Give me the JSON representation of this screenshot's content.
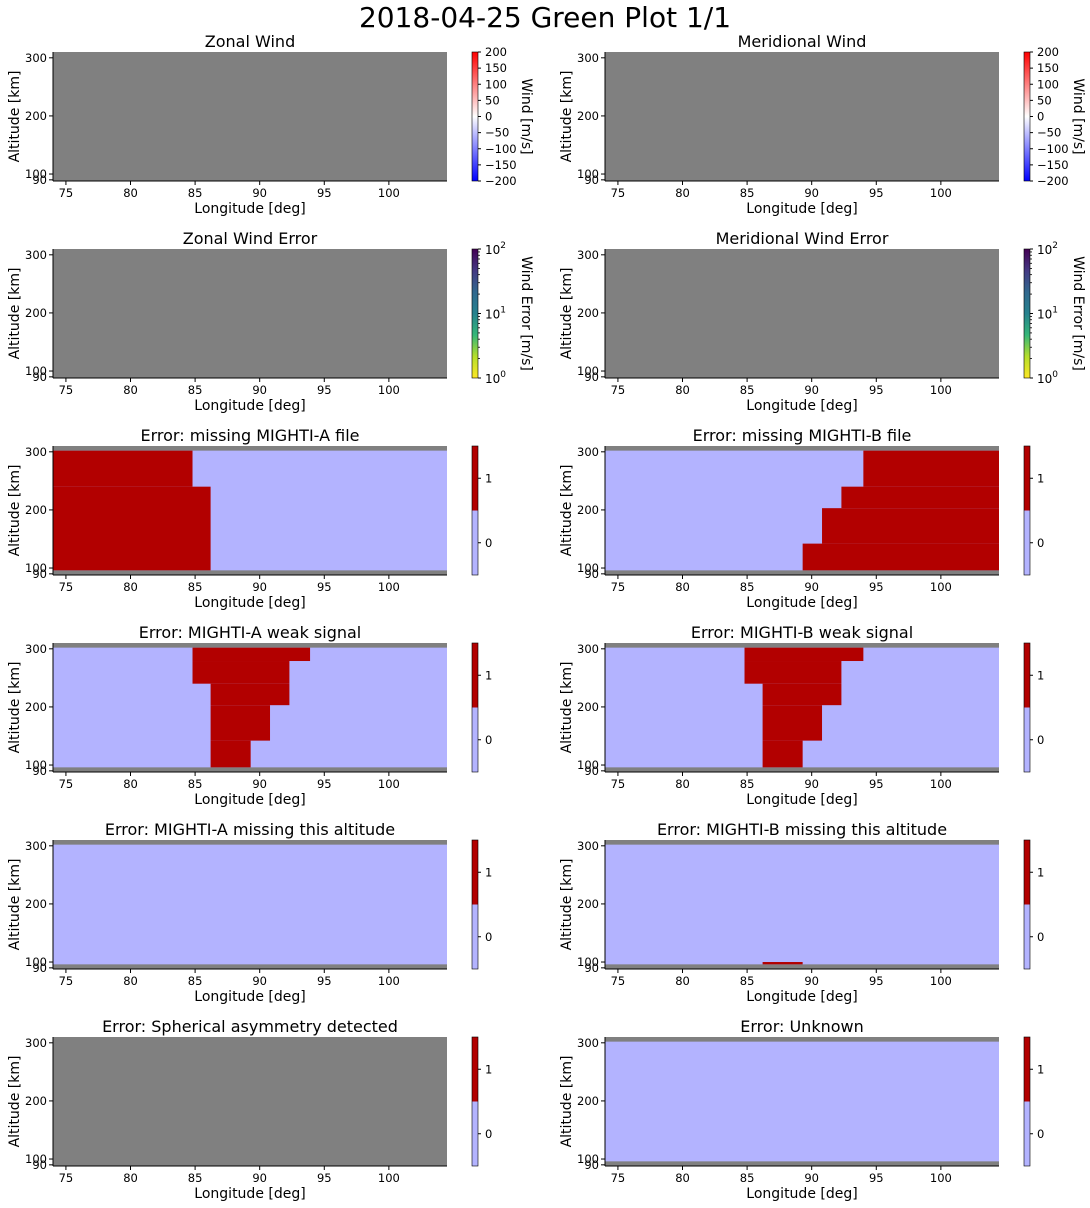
{
  "figure": {
    "title": "2018-04-25 Green Plot 1/1",
    "colors": {
      "missing": "#808080",
      "flag_off": "#b3b3ff",
      "flag_on": "#b20000",
      "wind_cmap": [
        "#0000ff",
        "#8080ff",
        "#ffffff",
        "#ff8080",
        "#ff0000"
      ],
      "error_cmap": [
        "#fde725",
        "#b5de2b",
        "#35b779",
        "#26828e",
        "#31688e",
        "#443983",
        "#440154"
      ]
    }
  },
  "chart_data": [
    {
      "type": "heatmap",
      "title": "Zonal Wind",
      "xlabel": "Longitude [deg]",
      "ylabel": "Altitude [km]",
      "xlim": [
        74,
        104.5
      ],
      "ylim": [
        88,
        310
      ],
      "x_ticks": [
        "75",
        "80",
        "85",
        "90",
        "95",
        "100"
      ],
      "y_ticks": [
        "90",
        "100",
        "200",
        "300"
      ],
      "fill": "missing",
      "cells": [],
      "colorbar": {
        "kind": "linear",
        "label": "Wind [m/s]",
        "range": [
          -200,
          200
        ],
        "ticks": [
          "200",
          "150",
          "100",
          "50",
          "0",
          "−50",
          "−100",
          "−150",
          "−200"
        ]
      }
    },
    {
      "type": "heatmap",
      "title": "Meridional Wind",
      "xlabel": "Longitude [deg]",
      "ylabel": "Altitude [km]",
      "xlim": [
        74,
        104.5
      ],
      "ylim": [
        88,
        310
      ],
      "x_ticks": [
        "75",
        "80",
        "85",
        "90",
        "95",
        "100"
      ],
      "y_ticks": [
        "90",
        "100",
        "200",
        "300"
      ],
      "fill": "missing",
      "cells": [],
      "colorbar": {
        "kind": "linear",
        "label": "Wind [m/s]",
        "range": [
          -200,
          200
        ],
        "ticks": [
          "200",
          "150",
          "100",
          "50",
          "0",
          "−50",
          "−100",
          "−150",
          "−200"
        ]
      }
    },
    {
      "type": "heatmap",
      "title": "Zonal Wind Error",
      "xlabel": "Longitude [deg]",
      "ylabel": "Altitude [km]",
      "xlim": [
        74,
        104.5
      ],
      "ylim": [
        88,
        310
      ],
      "x_ticks": [
        "75",
        "80",
        "85",
        "90",
        "95",
        "100"
      ],
      "y_ticks": [
        "90",
        "100",
        "200",
        "300"
      ],
      "fill": "missing",
      "cells": [],
      "colorbar": {
        "kind": "log",
        "label": "Wind Error [m/s]",
        "range": [
          1,
          100
        ],
        "ticks": [
          {
            "base": "10",
            "exp": "2"
          },
          {
            "base": "10",
            "exp": "1"
          },
          {
            "base": "10",
            "exp": "0"
          }
        ]
      }
    },
    {
      "type": "heatmap",
      "title": "Meridional Wind Error",
      "xlabel": "Longitude [deg]",
      "ylabel": "Altitude [km]",
      "xlim": [
        74,
        104.5
      ],
      "ylim": [
        88,
        310
      ],
      "x_ticks": [
        "75",
        "80",
        "85",
        "90",
        "95",
        "100"
      ],
      "y_ticks": [
        "90",
        "100",
        "200",
        "300"
      ],
      "fill": "missing",
      "cells": [],
      "colorbar": {
        "kind": "log",
        "label": "Wind Error [m/s]",
        "range": [
          1,
          100
        ],
        "ticks": [
          {
            "base": "10",
            "exp": "2"
          },
          {
            "base": "10",
            "exp": "1"
          },
          {
            "base": "10",
            "exp": "0"
          }
        ]
      }
    },
    {
      "type": "heatmap",
      "title": "Error: missing MIGHTI-A file",
      "xlabel": "Longitude [deg]",
      "ylabel": "Altitude [km]",
      "xlim": [
        74,
        104.5
      ],
      "ylim": [
        88,
        310
      ],
      "x_ticks": [
        "75",
        "80",
        "85",
        "90",
        "95",
        "100"
      ],
      "y_ticks": [
        "90",
        "100",
        "200",
        "300"
      ],
      "fill": "flag",
      "valid_alt": [
        96,
        302
      ],
      "cells": [
        [
          74,
          84.8,
          240,
          302
        ],
        [
          74,
          86.2,
          96,
          240
        ]
      ],
      "colorbar": {
        "kind": "binary",
        "label": "",
        "ticks": [
          "1",
          "0"
        ]
      }
    },
    {
      "type": "heatmap",
      "title": "Error: missing MIGHTI-B file",
      "xlabel": "Longitude [deg]",
      "ylabel": "Altitude [km]",
      "xlim": [
        74,
        104.5
      ],
      "ylim": [
        88,
        310
      ],
      "x_ticks": [
        "75",
        "80",
        "85",
        "90",
        "95",
        "100"
      ],
      "y_ticks": [
        "90",
        "100",
        "200",
        "300"
      ],
      "fill": "flag",
      "valid_alt": [
        96,
        302
      ],
      "cells": [
        [
          94,
          104.5,
          240,
          302
        ],
        [
          92.3,
          104.5,
          203,
          240
        ],
        [
          90.8,
          104.5,
          142,
          203
        ],
        [
          89.3,
          104.5,
          96,
          142
        ]
      ],
      "colorbar": {
        "kind": "binary",
        "label": "",
        "ticks": [
          "1",
          "0"
        ]
      }
    },
    {
      "type": "heatmap",
      "title": "Error: MIGHTI-A weak signal",
      "xlabel": "Longitude [deg]",
      "ylabel": "Altitude [km]",
      "xlim": [
        74,
        104.5
      ],
      "ylim": [
        88,
        310
      ],
      "x_ticks": [
        "75",
        "80",
        "85",
        "90",
        "95",
        "100"
      ],
      "y_ticks": [
        "90",
        "100",
        "200",
        "300"
      ],
      "fill": "flag",
      "valid_alt": [
        96,
        302
      ],
      "cells": [
        [
          84.8,
          93.9,
          279,
          302
        ],
        [
          84.8,
          92.3,
          240,
          279
        ],
        [
          86.2,
          92.3,
          203,
          240
        ],
        [
          86.2,
          90.8,
          142,
          203
        ],
        [
          86.2,
          89.3,
          96,
          142
        ]
      ],
      "colorbar": {
        "kind": "binary",
        "label": "",
        "ticks": [
          "1",
          "0"
        ]
      }
    },
    {
      "type": "heatmap",
      "title": "Error: MIGHTI-B weak signal",
      "xlabel": "Longitude [deg]",
      "ylabel": "Altitude [km]",
      "xlim": [
        74,
        104.5
      ],
      "ylim": [
        88,
        310
      ],
      "x_ticks": [
        "75",
        "80",
        "85",
        "90",
        "95",
        "100"
      ],
      "y_ticks": [
        "90",
        "100",
        "200",
        "300"
      ],
      "fill": "flag",
      "valid_alt": [
        96,
        302
      ],
      "cells": [
        [
          84.8,
          94,
          279,
          302
        ],
        [
          84.8,
          92.3,
          240,
          279
        ],
        [
          86.2,
          92.3,
          203,
          240
        ],
        [
          86.2,
          90.8,
          142,
          203
        ],
        [
          86.2,
          89.3,
          96,
          142
        ]
      ],
      "colorbar": {
        "kind": "binary",
        "label": "",
        "ticks": [
          "1",
          "0"
        ]
      }
    },
    {
      "type": "heatmap",
      "title": "Error: MIGHTI-A missing this altitude",
      "xlabel": "Longitude [deg]",
      "ylabel": "Altitude [km]",
      "xlim": [
        74,
        104.5
      ],
      "ylim": [
        88,
        310
      ],
      "x_ticks": [
        "75",
        "80",
        "85",
        "90",
        "95",
        "100"
      ],
      "y_ticks": [
        "90",
        "100",
        "200",
        "300"
      ],
      "fill": "flag",
      "valid_alt": [
        96,
        302
      ],
      "cells": [],
      "colorbar": {
        "kind": "binary",
        "label": "",
        "ticks": [
          "1",
          "0"
        ]
      }
    },
    {
      "type": "heatmap",
      "title": "Error: MIGHTI-B missing this altitude",
      "xlabel": "Longitude [deg]",
      "ylabel": "Altitude [km]",
      "xlim": [
        74,
        104.5
      ],
      "ylim": [
        88,
        310
      ],
      "x_ticks": [
        "75",
        "80",
        "85",
        "90",
        "95",
        "100"
      ],
      "y_ticks": [
        "90",
        "100",
        "200",
        "300"
      ],
      "fill": "flag",
      "valid_alt": [
        96,
        302
      ],
      "cells": [
        [
          86.2,
          89.3,
          96,
          100
        ]
      ],
      "colorbar": {
        "kind": "binary",
        "label": "",
        "ticks": [
          "1",
          "0"
        ]
      }
    },
    {
      "type": "heatmap",
      "title": "Error: Spherical asymmetry detected",
      "xlabel": "Longitude [deg]",
      "ylabel": "Altitude [km]",
      "xlim": [
        74,
        104.5
      ],
      "ylim": [
        88,
        310
      ],
      "x_ticks": [
        "75",
        "80",
        "85",
        "90",
        "95",
        "100"
      ],
      "y_ticks": [
        "90",
        "100",
        "200",
        "300"
      ],
      "fill": "missing",
      "cells": [],
      "colorbar": {
        "kind": "binary",
        "label": "",
        "ticks": [
          "1",
          "0"
        ]
      }
    },
    {
      "type": "heatmap",
      "title": "Error: Unknown",
      "xlabel": "Longitude [deg]",
      "ylabel": "Altitude [km]",
      "xlim": [
        74,
        104.5
      ],
      "ylim": [
        88,
        310
      ],
      "x_ticks": [
        "75",
        "80",
        "85",
        "90",
        "95",
        "100"
      ],
      "y_ticks": [
        "90",
        "100",
        "200",
        "300"
      ],
      "fill": "flag",
      "valid_alt": [
        96,
        302
      ],
      "cells": [],
      "colorbar": {
        "kind": "binary",
        "label": "",
        "ticks": [
          "1",
          "0"
        ]
      }
    }
  ]
}
